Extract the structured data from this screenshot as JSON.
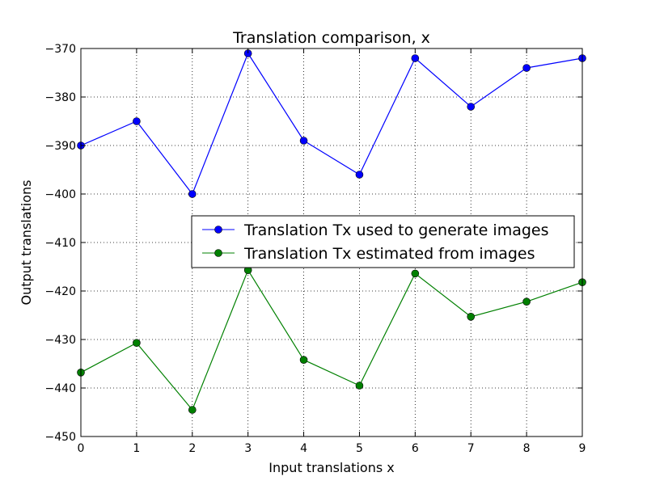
{
  "chart_data": {
    "type": "line",
    "title": "Translation comparison, x",
    "xlabel": "Input translations x",
    "ylabel": "Output translations",
    "x": [
      0,
      1,
      2,
      3,
      4,
      5,
      6,
      7,
      8,
      9
    ],
    "xlim": [
      0,
      9
    ],
    "ylim": [
      -450,
      -370
    ],
    "xticks": [
      "0",
      "1",
      "2",
      "3",
      "4",
      "5",
      "6",
      "7",
      "8",
      "9"
    ],
    "yticks": [
      "−370",
      "−380",
      "−390",
      "−400",
      "−410",
      "−420",
      "−430",
      "−440",
      "−450"
    ],
    "ytick_values": [
      -370,
      -380,
      -390,
      -400,
      -410,
      -420,
      -430,
      -440,
      -450
    ],
    "grid": true,
    "legend_position": "center-right",
    "series": [
      {
        "name": "Translation Tx used to generate images",
        "color": "#0000ff",
        "values": [
          -390,
          -385,
          -400,
          -371,
          -389,
          -396,
          -372,
          -382,
          -374,
          -372
        ]
      },
      {
        "name": "Translation Tx estimated from images",
        "color": "#008000",
        "values": [
          -436.8,
          -430.7,
          -444.5,
          -415.7,
          -434.2,
          -439.5,
          -416.4,
          -425.3,
          -422.2,
          -418.2
        ]
      }
    ]
  }
}
